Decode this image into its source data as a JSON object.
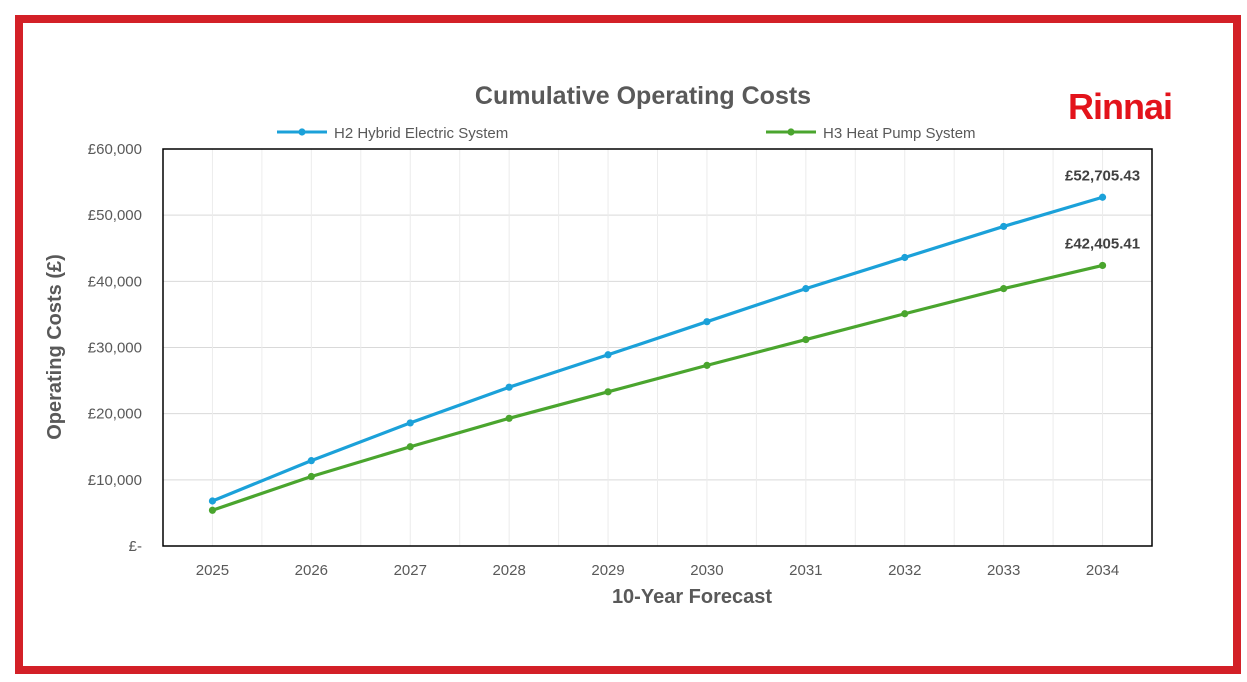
{
  "brand": {
    "logo_text": "Rinnai",
    "logo_color": "#e3131b",
    "frame_color": "#d32027"
  },
  "chart_data": {
    "type": "line",
    "title": "Cumulative Operating Costs",
    "xlabel": "10-Year Forecast",
    "ylabel": "Operating Costs (£)",
    "categories": [
      "2025",
      "2026",
      "2027",
      "2028",
      "2029",
      "2030",
      "2031",
      "2032",
      "2033",
      "2034"
    ],
    "ylim": [
      0,
      60000
    ],
    "yticks": [
      {
        "value": 0,
        "label": "£-"
      },
      {
        "value": 10000,
        "label": "£10,000"
      },
      {
        "value": 20000,
        "label": "£20,000"
      },
      {
        "value": 30000,
        "label": "£30,000"
      },
      {
        "value": 40000,
        "label": "£40,000"
      },
      {
        "value": 50000,
        "label": "£50,000"
      },
      {
        "value": 60000,
        "label": "£60,000"
      }
    ],
    "legend_position": "top",
    "grid": true,
    "series": [
      {
        "name": "H2 Hybrid Electric System",
        "color": "#1ba1d9",
        "values": [
          6800,
          12900,
          18600,
          24000,
          28900,
          33900,
          38900,
          43600,
          48300,
          52705.43
        ],
        "end_label": "£52,705.43"
      },
      {
        "name": "H3 Heat Pump System",
        "color": "#4aa52e",
        "values": [
          5400,
          10500,
          15000,
          19300,
          23300,
          27300,
          31200,
          35100,
          38900,
          42405.41
        ],
        "end_label": "£42,405.41"
      }
    ]
  }
}
